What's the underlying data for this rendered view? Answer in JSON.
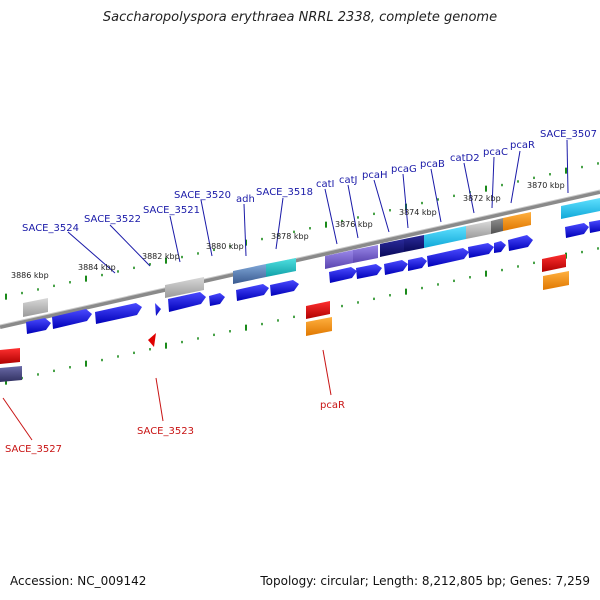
{
  "title": "Saccharopolyspora erythraea NRRL 2338, complete genome",
  "accession_text": "Accession: NC_009142",
  "topology_text": "Topology: circular; Length: 8,212,805 bp; Genes: 7,259",
  "colors": {
    "forward_cds": "#1010e0",
    "reverse_red": "#e00000",
    "orange": "#ff9010",
    "gray": "#b0b0b0",
    "dark_navy": "#14147a",
    "cyan": "#28c8f0",
    "purple": "#7860d0",
    "backbone": "#808080",
    "tick": "#1a8a1a",
    "label_blue": "#1a1aa8",
    "label_red": "#c81414"
  },
  "kbp_labels": [
    "3886 kbp",
    "3884 kbp",
    "3882 kbp",
    "3880 kbp",
    "3878 kbp",
    "3876 kbp",
    "3874 kbp",
    "3872 kbp",
    "3870 kbp"
  ],
  "gene_labels_forward": [
    "SACE_3524",
    "SACE_3522",
    "SACE_3521",
    "SACE_3520",
    "adh",
    "SACE_3518",
    "catI",
    "catJ",
    "pcaH",
    "pcaG",
    "pcaB",
    "catD2",
    "pcaC",
    "pcaR",
    "SACE_3507"
  ],
  "gene_labels_reverse": [
    "SACE_3527",
    "SACE_3523",
    "pcaR"
  ]
}
